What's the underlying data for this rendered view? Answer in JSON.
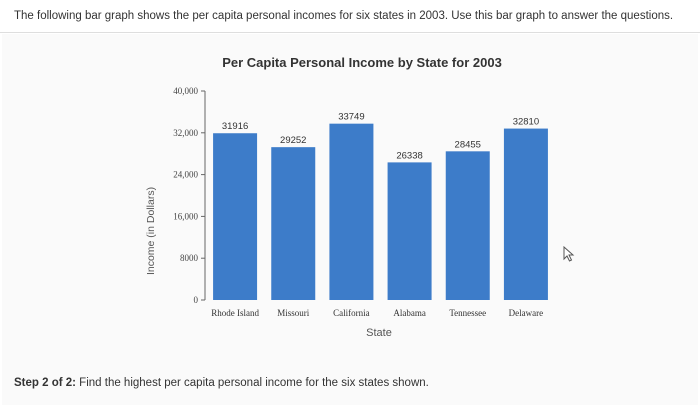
{
  "question": {
    "intro": "The following bar graph shows the per capita personal incomes for six states in 2003. Use this bar graph to answer the questions.",
    "step_label": "Step 2 of 2:",
    "step_text": " Find the highest per capita personal income for the six states shown."
  },
  "chart_data": {
    "type": "bar",
    "title": "Per Capita Personal Income by State for 2003",
    "xlabel": "State",
    "ylabel": "Income (in Dollars)",
    "categories": [
      "Rhode Island",
      "Missouri",
      "California",
      "Alabama",
      "Tennessee",
      "Delaware"
    ],
    "values": [
      31916,
      29252,
      33749,
      26338,
      28455,
      32810
    ],
    "data_labels": [
      "31916",
      "29252",
      "33749",
      "26338",
      "28455",
      "32810"
    ],
    "yticks": [
      0,
      8000,
      16000,
      24000,
      32000,
      40000
    ],
    "ytick_labels": [
      "0",
      "8000",
      "16,000",
      "24,000",
      "32,000",
      "40,000"
    ],
    "ylim": [
      0,
      40000
    ],
    "bar_color": "#3d7cc9",
    "grid": false
  }
}
